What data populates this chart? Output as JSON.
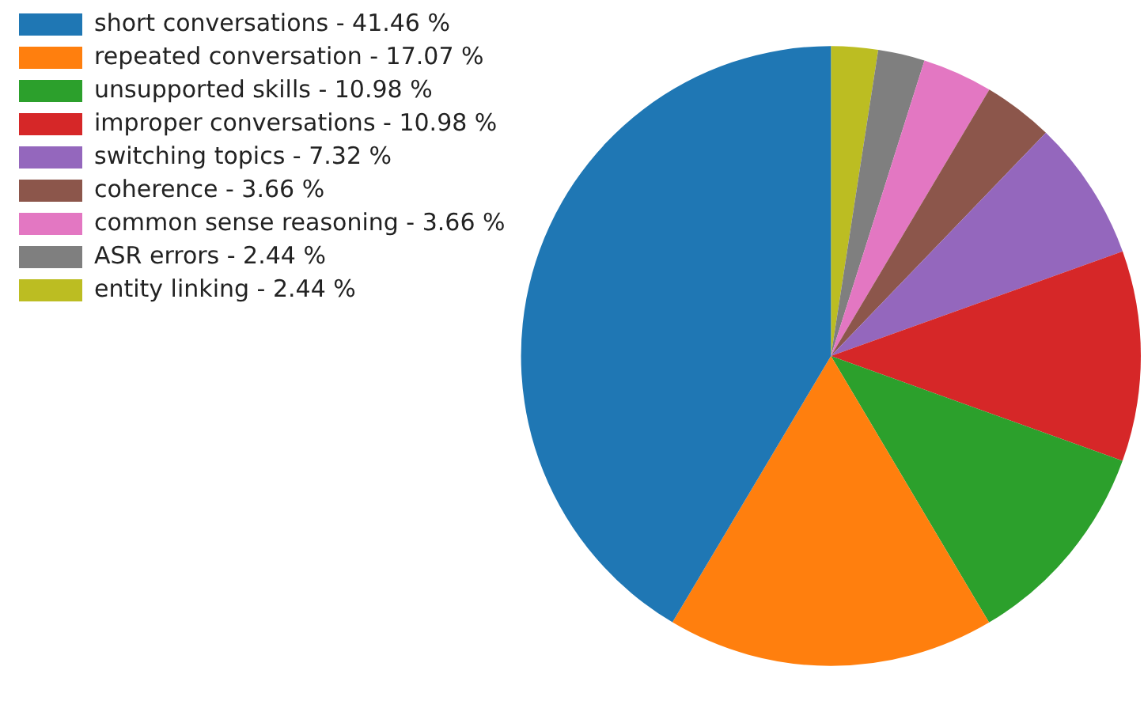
{
  "chart_data": {
    "type": "pie",
    "categories": [
      "short conversations - 41.46 %",
      "repeated conversation - 17.07 %",
      "unsupported skills - 10.98 %",
      "improper conversations - 10.98 %",
      "switching topics - 7.32 %",
      "coherence - 3.66 %",
      "common sense reasoning - 3.66 %",
      "ASR errors - 2.44 %",
      "entity linking - 2.44 %"
    ],
    "values": [
      41.46,
      17.07,
      10.98,
      10.98,
      7.32,
      3.66,
      3.66,
      2.44,
      2.44
    ],
    "colors": [
      "#1f77b4",
      "#ff7f0e",
      "#2ca02c",
      "#d62728",
      "#9467bd",
      "#8c564b",
      "#e377c2",
      "#7f7f7f",
      "#bcbd22"
    ],
    "legend": "top left"
  }
}
